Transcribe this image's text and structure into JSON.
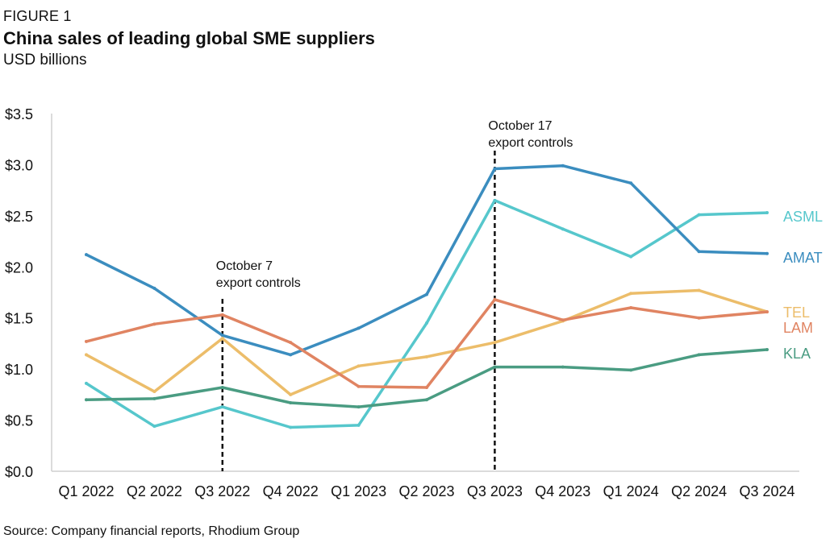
{
  "figure_label": "FIGURE 1",
  "title": "China sales of leading global SME suppliers",
  "subtitle": "USD billions",
  "source": "Source: Company financial reports, Rhodium Group",
  "chart_data": {
    "type": "line",
    "categories": [
      "Q1 2022",
      "Q2 2022",
      "Q3 2022",
      "Q4 2022",
      "Q1 2023",
      "Q2 2023",
      "Q3 2023",
      "Q4 2023",
      "Q1 2024",
      "Q2 2024",
      "Q3 2024"
    ],
    "ylim": [
      0,
      3.5
    ],
    "yticks": [
      "$0.0",
      "$0.5",
      "$1.0",
      "$1.5",
      "$2.0",
      "$2.5",
      "$3.0",
      "$3.5"
    ],
    "ytick_values": [
      0,
      0.5,
      1.0,
      1.5,
      2.0,
      2.5,
      3.0,
      3.5
    ],
    "grid": false,
    "legend": "end-of-line labels",
    "series": [
      {
        "name": "ASML",
        "color": "#56c7cc",
        "values": [
          0.86,
          0.44,
          0.63,
          0.43,
          0.45,
          1.45,
          2.65,
          2.37,
          2.1,
          2.51,
          2.53
        ]
      },
      {
        "name": "AMAT",
        "color": "#3b8dbf",
        "values": [
          2.12,
          1.79,
          1.33,
          1.14,
          1.4,
          1.73,
          2.96,
          2.99,
          2.82,
          2.15,
          2.13
        ]
      },
      {
        "name": "TEL",
        "color": "#ecbd6a",
        "values": [
          1.14,
          0.78,
          1.3,
          0.75,
          1.03,
          1.12,
          1.26,
          1.47,
          1.74,
          1.77,
          1.56
        ]
      },
      {
        "name": "LAM",
        "color": "#e08462",
        "values": [
          1.27,
          1.44,
          1.53,
          1.26,
          0.83,
          0.82,
          1.68,
          1.48,
          1.6,
          1.5,
          1.56
        ]
      },
      {
        "name": "KLA",
        "color": "#4a9c82",
        "values": [
          0.7,
          0.71,
          0.82,
          0.67,
          0.63,
          0.7,
          1.02,
          1.02,
          0.99,
          1.14,
          1.19
        ]
      }
    ],
    "annotations": [
      {
        "category": "Q3 2022",
        "lines": [
          "October 7",
          "export controls"
        ]
      },
      {
        "category": "Q3 2023",
        "lines": [
          "October 17",
          "export controls"
        ]
      }
    ]
  }
}
